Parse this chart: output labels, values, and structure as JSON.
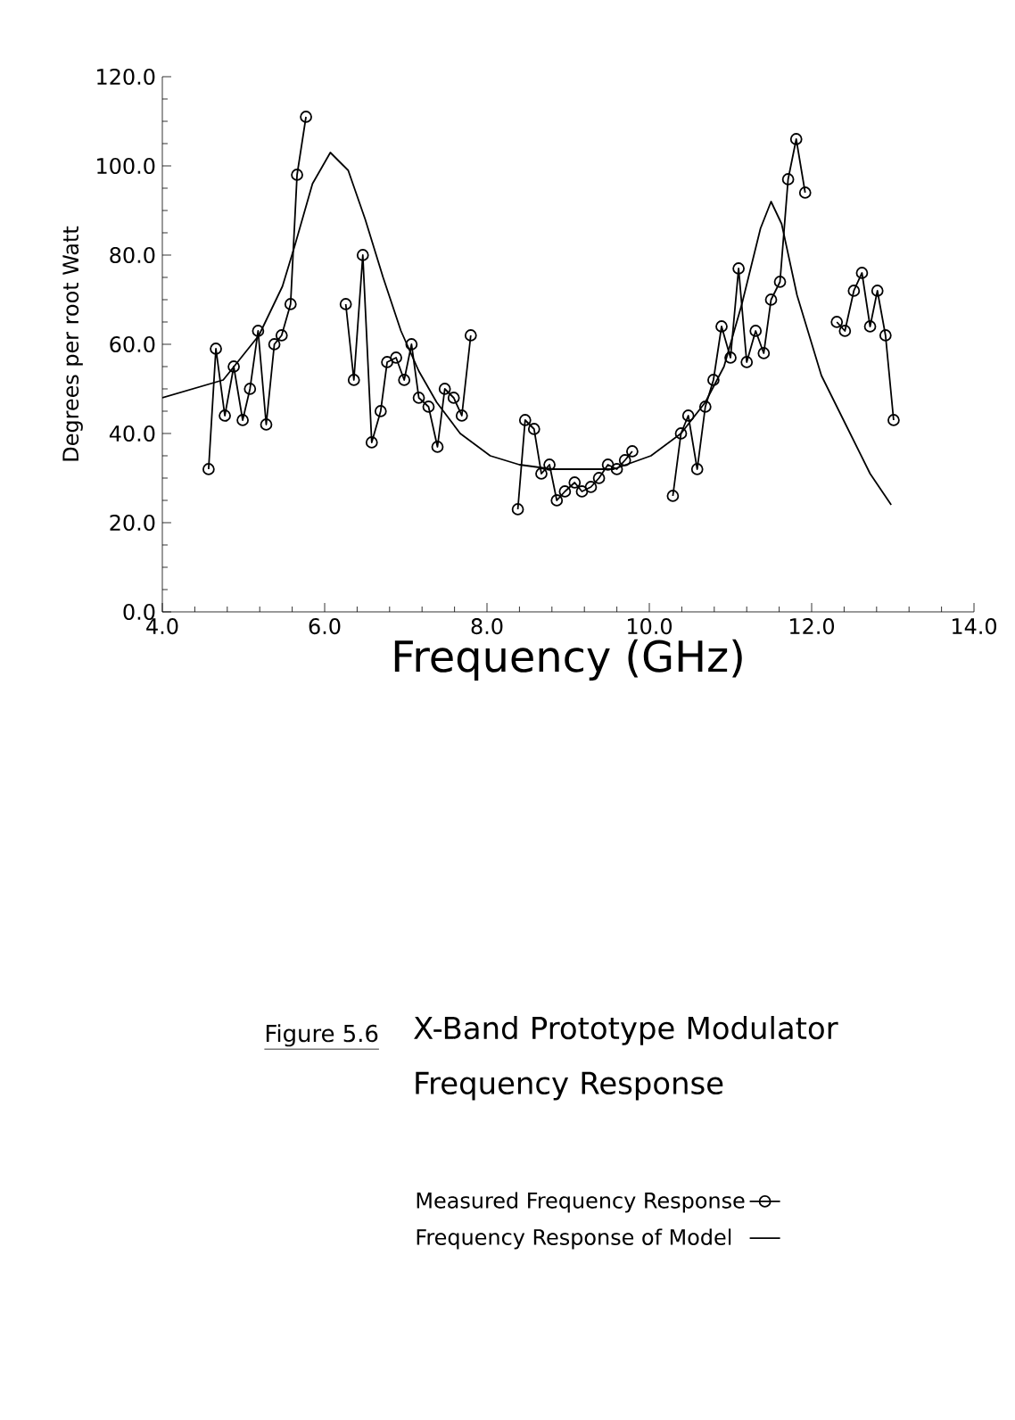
{
  "chart_data": {
    "type": "line",
    "title": "X-Band Prototype Modulator Frequency Response",
    "xlabel": "Frequency (GHz)",
    "ylabel": "Degrees per root Watt",
    "annotations": [
      "Figure 5.6"
    ],
    "xlim": [
      4.0,
      14.0
    ],
    "ylim": [
      0.0,
      120.0
    ],
    "xticks": [
      {
        "value": 4,
        "label": "4.0"
      },
      {
        "value": 6,
        "label": "6.0"
      },
      {
        "value": 8,
        "label": "8.0"
      },
      {
        "value": 10,
        "label": "10.0"
      },
      {
        "value": 12,
        "label": "12.0"
      },
      {
        "value": 14,
        "label": "14.0"
      }
    ],
    "yticks": [
      {
        "value": 0,
        "label": "0.0"
      },
      {
        "value": 20,
        "label": "20.0"
      },
      {
        "value": 40,
        "label": "40.0"
      },
      {
        "value": 60,
        "label": "60.0"
      },
      {
        "value": 80,
        "label": "80.0"
      },
      {
        "value": 100,
        "label": "100.0"
      },
      {
        "value": 120,
        "label": "120.0"
      }
    ],
    "grid": false,
    "legend": "bottom",
    "series": [
      {
        "name": "Measured Frequency Response",
        "color": "#000000",
        "marker": "circle",
        "x": [
          4.57,
          4.66,
          4.77,
          4.88,
          4.99,
          5.08,
          5.18,
          5.28,
          5.38,
          5.47,
          5.58,
          5.66,
          5.77,
          6.0,
          6.26,
          6.36,
          6.47,
          6.58,
          6.69,
          6.77,
          6.88,
          6.98,
          7.07,
          7.16,
          7.28,
          7.39,
          7.48,
          7.59,
          7.69,
          7.8,
          8.1,
          8.38,
          8.47,
          8.58,
          8.67,
          8.77,
          8.86,
          8.96,
          9.08,
          9.17,
          9.28,
          9.38,
          9.49,
          9.6,
          9.7,
          9.79,
          10.0,
          10.29,
          10.39,
          10.48,
          10.59,
          10.69,
          10.79,
          10.89,
          11.0,
          11.1,
          11.2,
          11.31,
          11.41,
          11.5,
          11.61,
          11.71,
          11.81,
          11.92,
          12.1,
          12.31,
          12.41,
          12.52,
          12.62,
          12.72,
          12.81,
          12.91,
          13.01
        ],
        "values": [
          32,
          59,
          44,
          55,
          43,
          50,
          63,
          42,
          60,
          62,
          69,
          98,
          111,
          null,
          69,
          52,
          80,
          38,
          45,
          56,
          57,
          52,
          60,
          48,
          46,
          37,
          50,
          48,
          44,
          62,
          null,
          23,
          43,
          41,
          31,
          33,
          25,
          27,
          29,
          27,
          28,
          30,
          33,
          32,
          34,
          36,
          null,
          26,
          40,
          44,
          32,
          46,
          52,
          64,
          57,
          77,
          56,
          63,
          58,
          70,
          74,
          97,
          106,
          94,
          null,
          65,
          63,
          72,
          76,
          64,
          72,
          62,
          43
        ]
      },
      {
        "name": "Frequency Response of Model",
        "color": "#000000",
        "marker": "none",
        "x": [
          4.0,
          4.75,
          5.19,
          5.48,
          5.63,
          5.85,
          6.07,
          6.29,
          6.5,
          6.72,
          6.94,
          7.16,
          7.38,
          7.67,
          8.04,
          8.4,
          8.81,
          9.56,
          10.02,
          10.39,
          10.69,
          10.92,
          11.14,
          11.37,
          11.5,
          11.63,
          11.82,
          12.12,
          12.42,
          12.72,
          12.98
        ],
        "values": [
          48,
          52,
          62,
          73,
          82,
          96,
          103,
          99,
          88,
          75,
          63,
          54,
          47,
          40,
          35,
          33,
          32,
          32,
          35,
          40,
          47,
          55,
          69,
          86,
          92,
          87,
          71,
          53,
          42,
          31,
          24
        ]
      }
    ]
  }
}
